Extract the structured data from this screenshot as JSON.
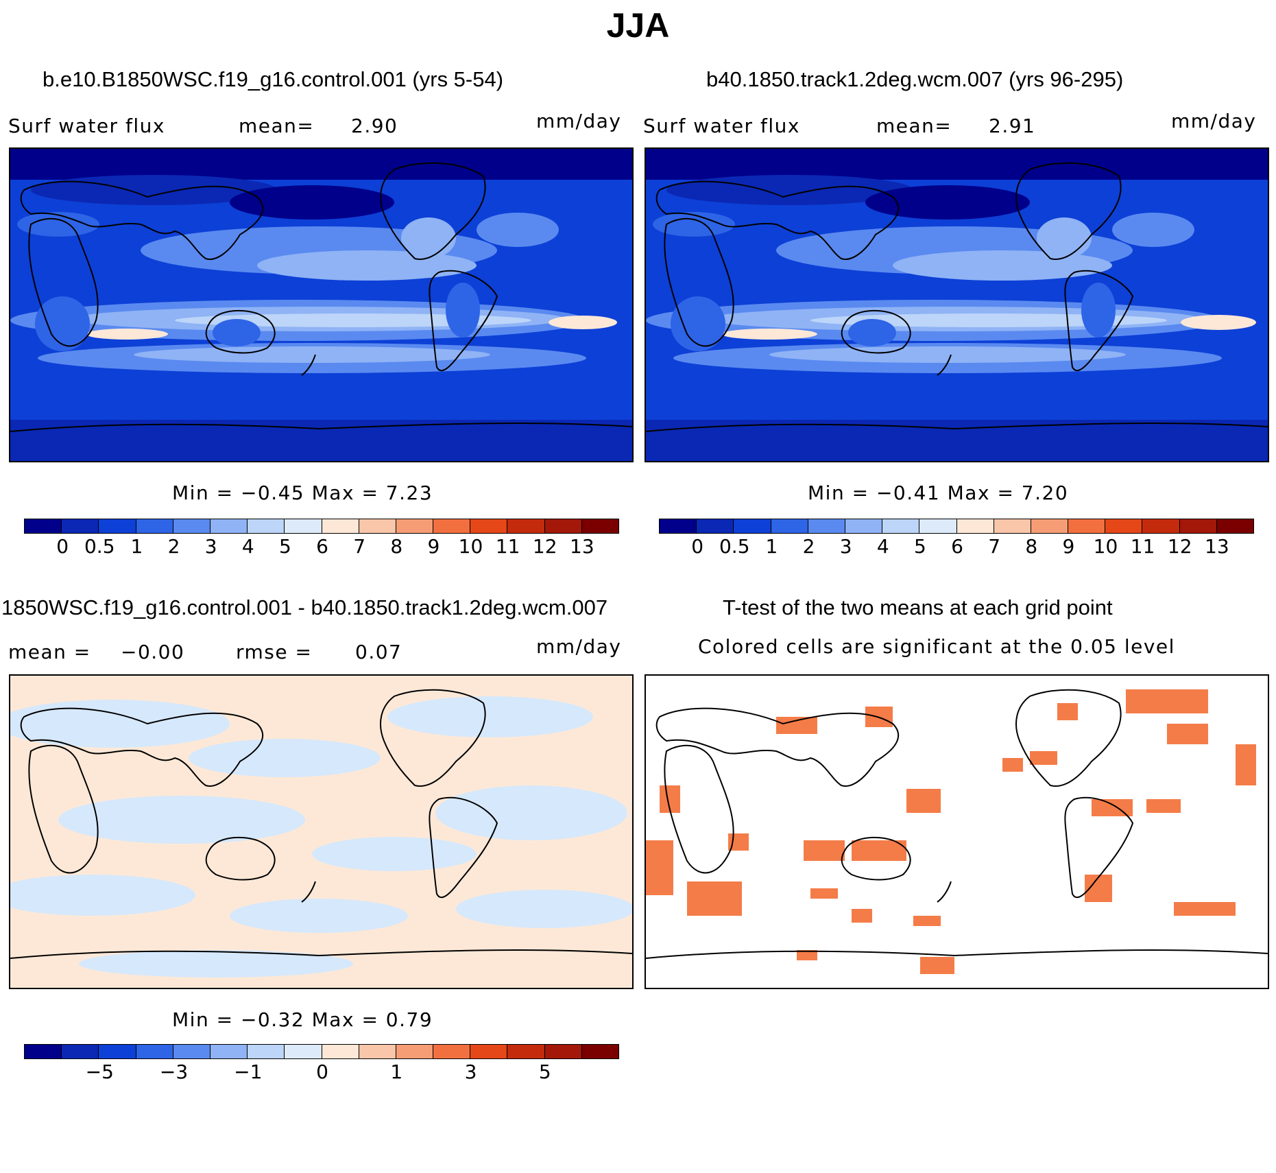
{
  "title": "JJA",
  "palette": [
    "#00008b",
    "#0a28b4",
    "#0d40d6",
    "#2e64e6",
    "#5a8af0",
    "#8fb3f5",
    "#bcd5f8",
    "#ddeafa",
    "#fde8d7",
    "#fac6aa",
    "#f79d76",
    "#f2703f",
    "#e54718",
    "#c42b0c",
    "#a31808",
    "#7a0000"
  ],
  "panels": {
    "p1": {
      "title": "b.e10.B1850WSC.f19_g16.control.001 (yrs 5-54)",
      "left_label": "Surf water flux",
      "mean_label": "mean=",
      "mean_value": "2.90",
      "units": "mm/day",
      "min_max": "Min =  −0.45 Max =    7.23",
      "colorbar_ticks": [
        "0",
        "0.5",
        "1",
        "2",
        "3",
        "4",
        "5",
        "6",
        "7",
        "8",
        "9",
        "10",
        "11",
        "12",
        "13"
      ]
    },
    "p2": {
      "title": "b40.1850.track1.2deg.wcm.007 (yrs 96-295)",
      "left_label": "Surf water flux",
      "mean_label": "mean=",
      "mean_value": "2.91",
      "units": "mm/day",
      "min_max": "Min =  −0.41 Max =    7.20",
      "colorbar_ticks": [
        "0",
        "0.5",
        "1",
        "2",
        "3",
        "4",
        "5",
        "6",
        "7",
        "8",
        "9",
        "10",
        "11",
        "12",
        "13"
      ]
    },
    "p3": {
      "title": "1850WSC.f19_g16.control.001 - b40.1850.track1.2deg.wcm.007",
      "mean_label": "mean =",
      "mean_value": "−0.00",
      "rmse_label": "rmse =",
      "rmse_value": "0.07",
      "units": "mm/day",
      "min_max": "Min =  −0.32 Max =    0.79",
      "colorbar_ticks": [
        "−5",
        "−3",
        "−1",
        "0",
        "1",
        "3",
        "5"
      ]
    },
    "p4": {
      "title": "T-test of the two means at each grid point",
      "subtitle": "Colored cells are significant at the 0.05 level"
    }
  },
  "colors": {
    "significant": "#f47c48",
    "diff_positive": "#fde8d7",
    "diff_negative": "#d6e8fb"
  }
}
